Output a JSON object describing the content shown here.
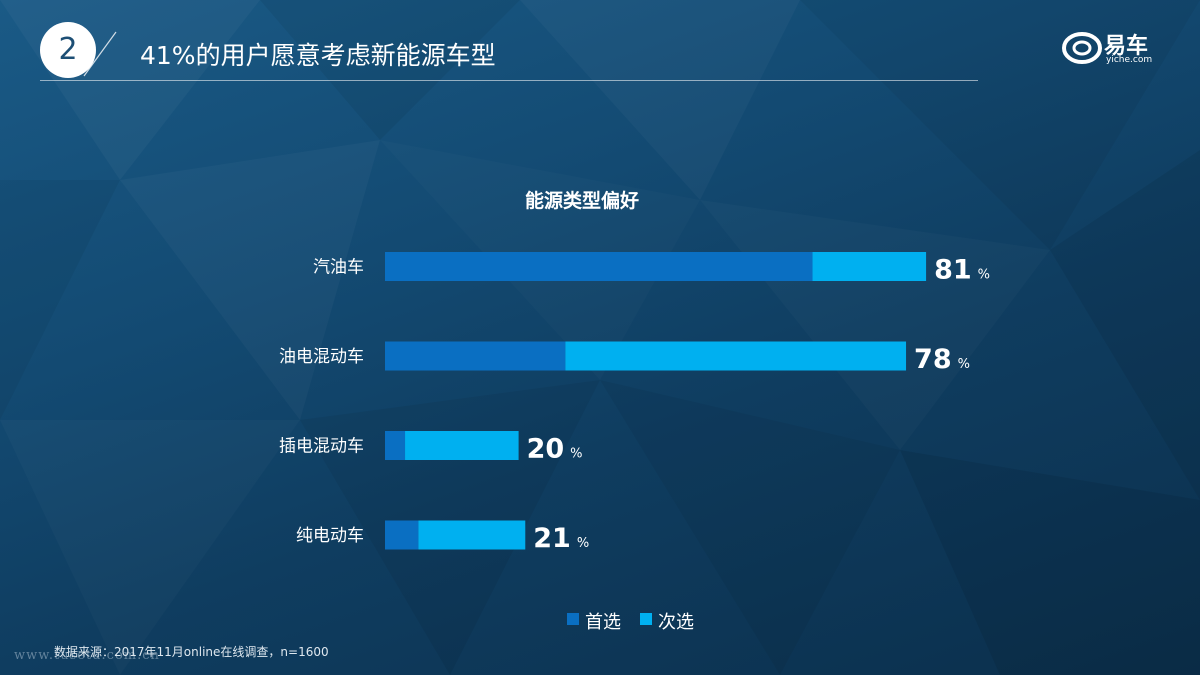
{
  "header": {
    "number": "2",
    "title": "41%的用户愿意考虑新能源车型"
  },
  "logo": {
    "name": "易车",
    "sub": "yiche.com"
  },
  "chart_data": {
    "type": "bar",
    "orientation": "horizontal",
    "stacked": true,
    "title": "能源类型偏好",
    "categories": [
      "汽油车",
      "油电混动车",
      "插电混动车",
      "纯电动车"
    ],
    "series": [
      {
        "name": "首选",
        "color": "#0a6fc2",
        "values": [
          64,
          27,
          3,
          5
        ]
      },
      {
        "name": "次选",
        "color": "#00b0f0",
        "values": [
          17,
          51,
          17,
          16
        ]
      }
    ],
    "totals": [
      81,
      78,
      20,
      21
    ],
    "total_unit": "%",
    "xlim": [
      0,
      100
    ],
    "legend": "bottom-center",
    "grid": false
  },
  "footnote": "数据来源：2017年11月online在线调查，n=1600",
  "watermark": "www.tusetu.com.cn",
  "colors": {
    "background": "#134a72",
    "primary": "#0a6fc2",
    "secondary": "#00b0f0"
  }
}
